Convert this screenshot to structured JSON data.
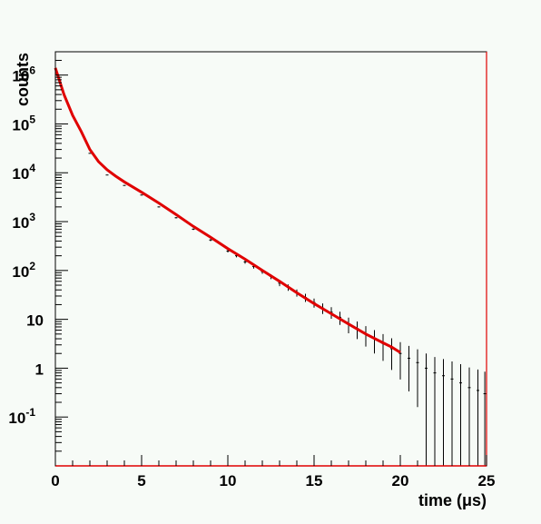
{
  "chart_data": {
    "type": "scatter",
    "title": "",
    "xlabel": "time (μs)",
    "ylabel": "counts",
    "xlim": [
      0,
      25
    ],
    "ylim": [
      0.01,
      3000000
    ],
    "yscale": "log",
    "grid": false,
    "legend": "none",
    "x_ticks": [
      0,
      5,
      10,
      15,
      20,
      25
    ],
    "x_tick_labels": [
      "0",
      "5",
      "10",
      "15",
      "20",
      "25"
    ],
    "y_ticks": [
      0.1,
      1,
      10,
      100,
      1000,
      10000,
      100000,
      1000000
    ],
    "y_tick_labels": [
      {
        "base": "10",
        "sup": "-1"
      },
      {
        "base": "1",
        "sup": ""
      },
      {
        "base": "10",
        "sup": ""
      },
      {
        "base": "10",
        "sup": "2"
      },
      {
        "base": "10",
        "sup": "3"
      },
      {
        "base": "10",
        "sup": "4"
      },
      {
        "base": "10",
        "sup": "5"
      },
      {
        "base": "10",
        "sup": "6"
      }
    ],
    "series": [
      {
        "kind": "data-points-with-error-bars",
        "color": "#000000",
        "x": [
          0.5,
          1.0,
          2.0,
          3.0,
          4.0,
          5.0,
          6.0,
          7.0,
          8.0,
          9.0,
          10.0,
          10.5,
          11.0,
          11.5,
          12.0,
          12.5,
          13.0,
          13.5,
          14.0,
          14.5,
          15.0,
          15.5,
          16.0,
          16.5,
          17.0,
          17.5,
          18.0,
          18.5,
          19.0,
          19.5,
          20.0,
          20.5,
          21.0,
          21.5,
          22.0,
          22.5,
          23.0,
          23.5,
          24.0,
          24.5,
          24.9
        ],
        "y": [
          400000,
          150000,
          25000,
          9000,
          5500,
          3500,
          2000,
          1200,
          700,
          420,
          250,
          200,
          150,
          120,
          95,
          75,
          55,
          45,
          35,
          28,
          22,
          17,
          14,
          11,
          8,
          6.5,
          5,
          4,
          3.2,
          2.5,
          2.0,
          1.6,
          1.3,
          1.0,
          0.8,
          0.7,
          0.6,
          0.5,
          0.4,
          0.35,
          0.3
        ]
      },
      {
        "kind": "fit-curve",
        "color": "#e00000",
        "x": [
          0,
          0.5,
          1.0,
          1.5,
          2.0,
          2.5,
          3.0,
          3.5,
          4.0,
          5.0,
          6.0,
          7.0,
          8.0,
          9.0,
          10.0,
          11.0,
          12.0,
          13.0,
          14.0,
          15.0,
          16.0,
          17.0,
          18.0,
          19.0,
          19.5,
          20.0
        ],
        "y": [
          1400000,
          400000,
          150000,
          70000,
          30000,
          17000,
          11500,
          8500,
          6500,
          4000,
          2400,
          1400,
          800,
          480,
          280,
          170,
          100,
          60,
          35,
          21,
          13,
          8,
          5,
          3.3,
          2.7,
          2.1
        ]
      }
    ]
  }
}
